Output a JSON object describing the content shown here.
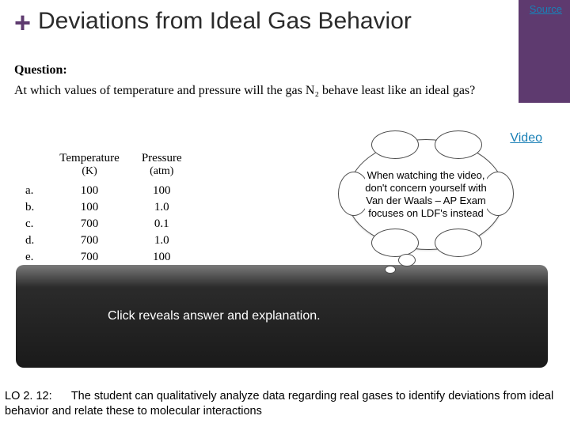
{
  "colors": {
    "accent_purple": "#5e3a6f",
    "link_blue": "#1a80b6",
    "reveal_gradient_top": "#7a7a7a",
    "reveal_gradient_mid": "#2b2b2b",
    "reveal_gradient_bottom": "#1a1a1a",
    "background": "#ffffff"
  },
  "plus": "+",
  "title": "Deviations from Ideal Gas Behavior",
  "source_label": "Source",
  "video_label": "Video",
  "question": {
    "label": "Question:",
    "text": "At which values of temperature and pressure will the gas N₂ behave least like an ideal gas?"
  },
  "table": {
    "headers": {
      "temp": "Temperature",
      "press": "Pressure"
    },
    "units": {
      "temp": "(K)",
      "press": "(atm)"
    },
    "rows": [
      {
        "label": "a.",
        "temp": "100",
        "press": "100"
      },
      {
        "label": "b.",
        "temp": "100",
        "press": "1.0"
      },
      {
        "label": "c.",
        "temp": "700",
        "press": "0.1"
      },
      {
        "label": "d.",
        "temp": "700",
        "press": "1.0"
      },
      {
        "label": "e.",
        "temp": "700",
        "press": "100"
      }
    ]
  },
  "bubble": "When watching the video, don't concern yourself with Van der Waals – AP Exam focuses on LDF's instead",
  "reveal": "Click reveals answer and explanation.",
  "lo": {
    "label": "LO 2. 12:",
    "text": "The student can qualitatively analyze data regarding real gases to identify deviations from ideal behavior and relate these to molecular interactions"
  }
}
